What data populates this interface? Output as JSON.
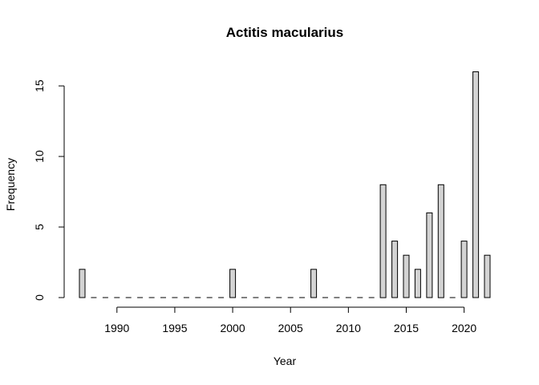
{
  "chart_data": {
    "type": "bar",
    "title": "Actitis macularius",
    "xlabel": "Year",
    "ylabel": "Frequency",
    "x": [
      1987,
      1988,
      1989,
      1990,
      1991,
      1992,
      1993,
      1994,
      1995,
      1996,
      1997,
      1998,
      1999,
      2000,
      2001,
      2002,
      2003,
      2004,
      2005,
      2006,
      2007,
      2008,
      2009,
      2010,
      2011,
      2012,
      2013,
      2014,
      2015,
      2016,
      2017,
      2018,
      2019,
      2020,
      2021,
      2022
    ],
    "values": [
      2,
      0,
      0,
      0,
      0,
      0,
      0,
      0,
      0,
      0,
      0,
      0,
      0,
      2,
      0,
      0,
      0,
      0,
      0,
      0,
      2,
      0,
      0,
      0,
      0,
      0,
      8,
      4,
      3,
      2,
      6,
      8,
      0,
      4,
      16,
      3
    ],
    "xlim": [
      1987,
      2022
    ],
    "ylim": [
      0,
      16
    ],
    "xticks": [
      1990,
      1995,
      2000,
      2005,
      2010,
      2015,
      2020
    ],
    "yticks": [
      0,
      5,
      10,
      15
    ],
    "grid": false,
    "bar_color": "#d3d3d3",
    "edge_color": "#000000"
  }
}
